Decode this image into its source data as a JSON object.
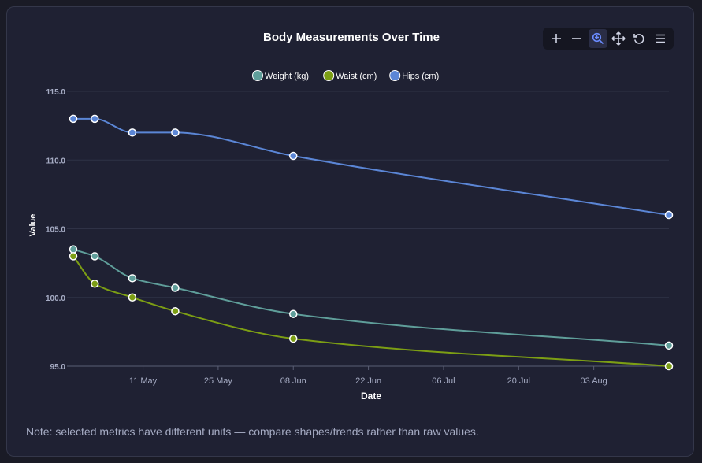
{
  "chart_data": {
    "type": "line",
    "title": "Body Measurements Over Time",
    "xlabel": "Date",
    "ylabel": "Value",
    "ylim": [
      95,
      115
    ],
    "xlim": [
      "2025-04-28",
      "2025-08-17"
    ],
    "yticks": [
      "95.0",
      "100.0",
      "105.0",
      "110.0",
      "115.0"
    ],
    "xticks": [
      {
        "date": "2025-05-11",
        "label": "11 May"
      },
      {
        "date": "2025-05-25",
        "label": "25 May"
      },
      {
        "date": "2025-06-08",
        "label": "08 Jun"
      },
      {
        "date": "2025-06-22",
        "label": "22 Jun"
      },
      {
        "date": "2025-07-06",
        "label": "06 Jul"
      },
      {
        "date": "2025-07-20",
        "label": "20 Jul"
      },
      {
        "date": "2025-08-03",
        "label": "03 Aug"
      }
    ],
    "grid": true,
    "legend_position": "top-center",
    "x": [
      "2025-04-28",
      "2025-05-02",
      "2025-05-09",
      "2025-05-17",
      "2025-06-08",
      "2025-08-17"
    ],
    "series": [
      {
        "name": "Weight (kg)",
        "color": "#5f9e9a",
        "values": [
          103.5,
          103.0,
          101.4,
          100.7,
          98.8,
          96.5
        ]
      },
      {
        "name": "Waist (cm)",
        "color": "#7c9e14",
        "values": [
          103.0,
          101.0,
          100.0,
          99.0,
          97.0,
          95.0
        ]
      },
      {
        "name": "Hips (cm)",
        "color": "#5b86d6",
        "values": [
          113.0,
          113.0,
          112.0,
          112.0,
          110.3,
          106.0
        ]
      }
    ]
  },
  "note": "Note: selected metrics have different units — compare shapes/trends rather than raw values.",
  "toolbar": {
    "icons": [
      "zoom-in-icon",
      "zoom-out-icon",
      "selection-zoom-icon",
      "pan-icon",
      "reset-icon",
      "menu-icon"
    ]
  },
  "colors": {
    "background": "#1f2133",
    "grid": "#2f3246",
    "axis_text": "#a6acc4",
    "title_text": "#ffffff",
    "active_tool": "#6b8cff"
  }
}
